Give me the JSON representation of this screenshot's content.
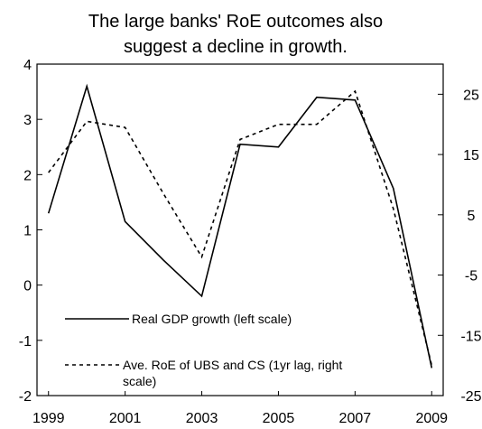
{
  "chart_data": {
    "type": "line",
    "title_lines": [
      "The large banks' RoE outcomes also",
      "suggest a decline in growth."
    ],
    "x": [
      1998.5,
      1999.5,
      2000.5,
      2001.5,
      2002.5,
      2003.5,
      2004.5,
      2005.5,
      2006.5,
      2007.5,
      2008.5
    ],
    "x_tick_labels": [
      "1999",
      "2001",
      "2003",
      "2005",
      "2007",
      "2009"
    ],
    "x_ticks": [
      1998.5,
      2000.5,
      2002.5,
      2004.5,
      2006.5,
      2008.5
    ],
    "xlim": [
      1998.2,
      2008.8
    ],
    "left_axis": {
      "ylim": [
        -2,
        4
      ],
      "ticks": [
        -2,
        -1,
        0,
        1,
        2,
        3,
        4
      ],
      "tick_labels": [
        "-2",
        "-1",
        "0",
        "1",
        "2",
        "3",
        "4"
      ]
    },
    "right_axis": {
      "ylim": [
        -25,
        30
      ],
      "ticks": [
        -25,
        -15,
        -5,
        5,
        15,
        25
      ],
      "tick_labels": [
        "-25",
        "-15",
        "-5",
        "5",
        "15",
        "25"
      ]
    },
    "series": [
      {
        "name": "Real GDP growth (left scale)",
        "axis": "left",
        "style": "solid",
        "values": [
          1.3,
          3.6,
          1.15,
          0.45,
          -0.2,
          2.55,
          2.5,
          3.4,
          3.35,
          1.75,
          -1.5
        ]
      },
      {
        "name_lines": [
          "Ave. RoE of UBS and CS (1yr lag, right",
          "scale)"
        ],
        "axis": "right",
        "style": "dashed",
        "values": [
          12,
          20.5,
          19.5,
          8.5,
          -2,
          17.5,
          20,
          20,
          25.5,
          6,
          -20
        ]
      }
    ],
    "grid": false,
    "legend": "bottom-left"
  }
}
